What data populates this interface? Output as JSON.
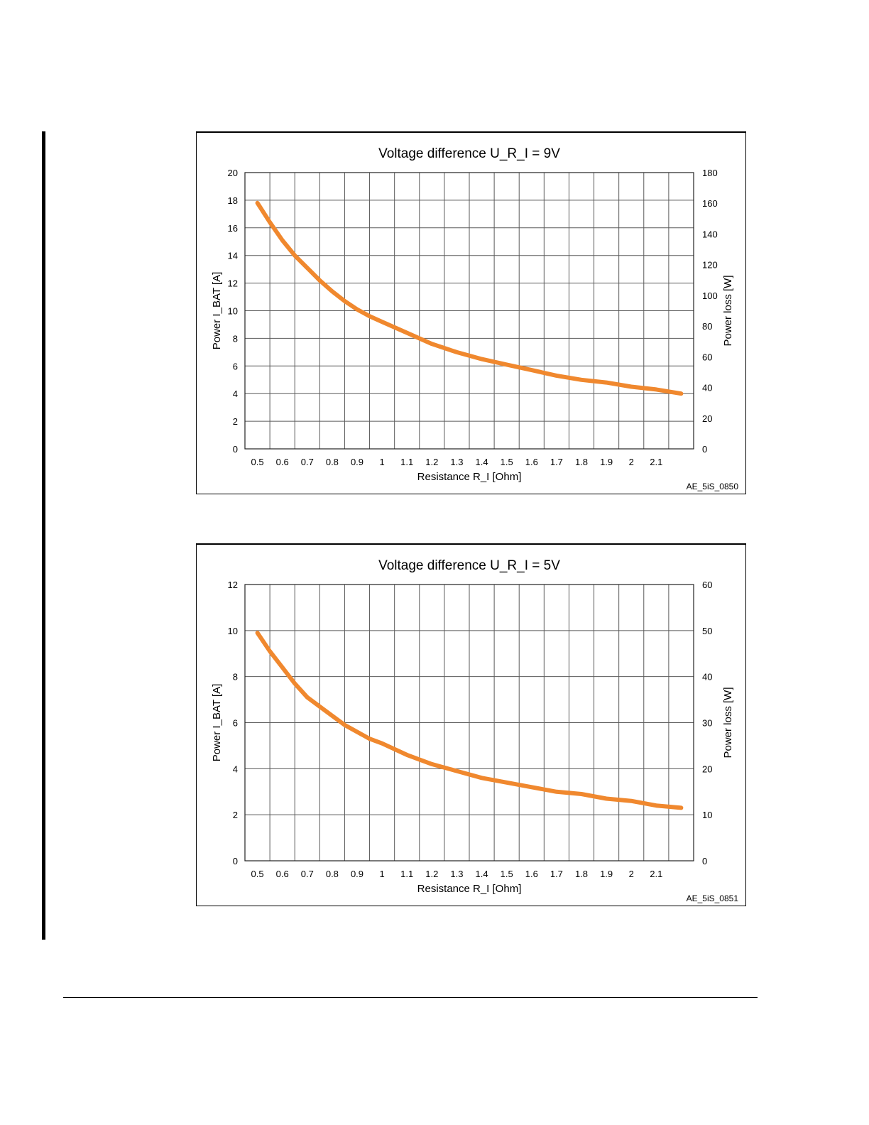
{
  "colors": {
    "curve": "#f0882e",
    "grid": "#5a5a5a",
    "frame": "#000000"
  },
  "chart_data": [
    {
      "type": "line",
      "figure_id": "AE_5iS_0850",
      "title": "Voltage difference U_R_I = 9V",
      "xlabel": "Resistance R_I [Ohm]",
      "ylabel": "Power I_BAT [A]",
      "y2label": "Power loss [W]",
      "x_ticks": [
        "0.5",
        "0.6",
        "0.7",
        "0.8",
        "0.9",
        "1",
        "1.1",
        "1.2",
        "1.3",
        "1.4",
        "1.5",
        "1.6",
        "1.7",
        "1.8",
        "1.9",
        "2",
        "2.1"
      ],
      "y_ticks": [
        "0",
        "2",
        "4",
        "6",
        "8",
        "10",
        "12",
        "14",
        "16",
        "18",
        "20"
      ],
      "y2_ticks": [
        "0",
        "20",
        "40",
        "60",
        "80",
        "100",
        "120",
        "140",
        "160",
        "180"
      ],
      "ylim": [
        0,
        20
      ],
      "grid": true,
      "series": [
        {
          "x": [
            0.5,
            0.55,
            0.6,
            0.65,
            0.7,
            0.75,
            0.8,
            0.85,
            0.9,
            0.95,
            1.0,
            1.1,
            1.2,
            1.3,
            1.4,
            1.5,
            1.6,
            1.7,
            1.8,
            1.9,
            2.0,
            2.1,
            2.2
          ],
          "values": [
            17.8,
            16.4,
            15.1,
            14.0,
            13.1,
            12.2,
            11.4,
            10.7,
            10.1,
            9.6,
            9.2,
            8.4,
            7.6,
            7.0,
            6.5,
            6.1,
            5.7,
            5.3,
            5.0,
            4.8,
            4.5,
            4.3,
            4.0
          ]
        }
      ]
    },
    {
      "type": "line",
      "figure_id": "AE_5iS_0851",
      "title": "Voltage difference U_R_I = 5V",
      "xlabel": "Resistance R_I [Ohm]",
      "ylabel": "Power I_BAT [A]",
      "y2label": "Power loss [W]",
      "x_ticks": [
        "0.5",
        "0.6",
        "0.7",
        "0.8",
        "0.9",
        "1",
        "1.1",
        "1.2",
        "1.3",
        "1.4",
        "1.5",
        "1.6",
        "1.7",
        "1.8",
        "1.9",
        "2",
        "2.1"
      ],
      "y_ticks": [
        "0",
        "2",
        "4",
        "6",
        "8",
        "10",
        "12"
      ],
      "y2_ticks": [
        "0",
        "10",
        "20",
        "30",
        "40",
        "50",
        "60"
      ],
      "ylim": [
        0,
        12
      ],
      "grid": true,
      "series": [
        {
          "x": [
            0.5,
            0.55,
            0.6,
            0.65,
            0.7,
            0.75,
            0.8,
            0.85,
            0.9,
            0.95,
            1.0,
            1.1,
            1.2,
            1.3,
            1.4,
            1.5,
            1.6,
            1.7,
            1.8,
            1.9,
            2.0,
            2.1,
            2.2
          ],
          "values": [
            9.9,
            9.1,
            8.4,
            7.7,
            7.1,
            6.7,
            6.3,
            5.9,
            5.6,
            5.3,
            5.1,
            4.6,
            4.2,
            3.9,
            3.6,
            3.4,
            3.2,
            3.0,
            2.9,
            2.7,
            2.6,
            2.4,
            2.3
          ]
        }
      ]
    }
  ]
}
